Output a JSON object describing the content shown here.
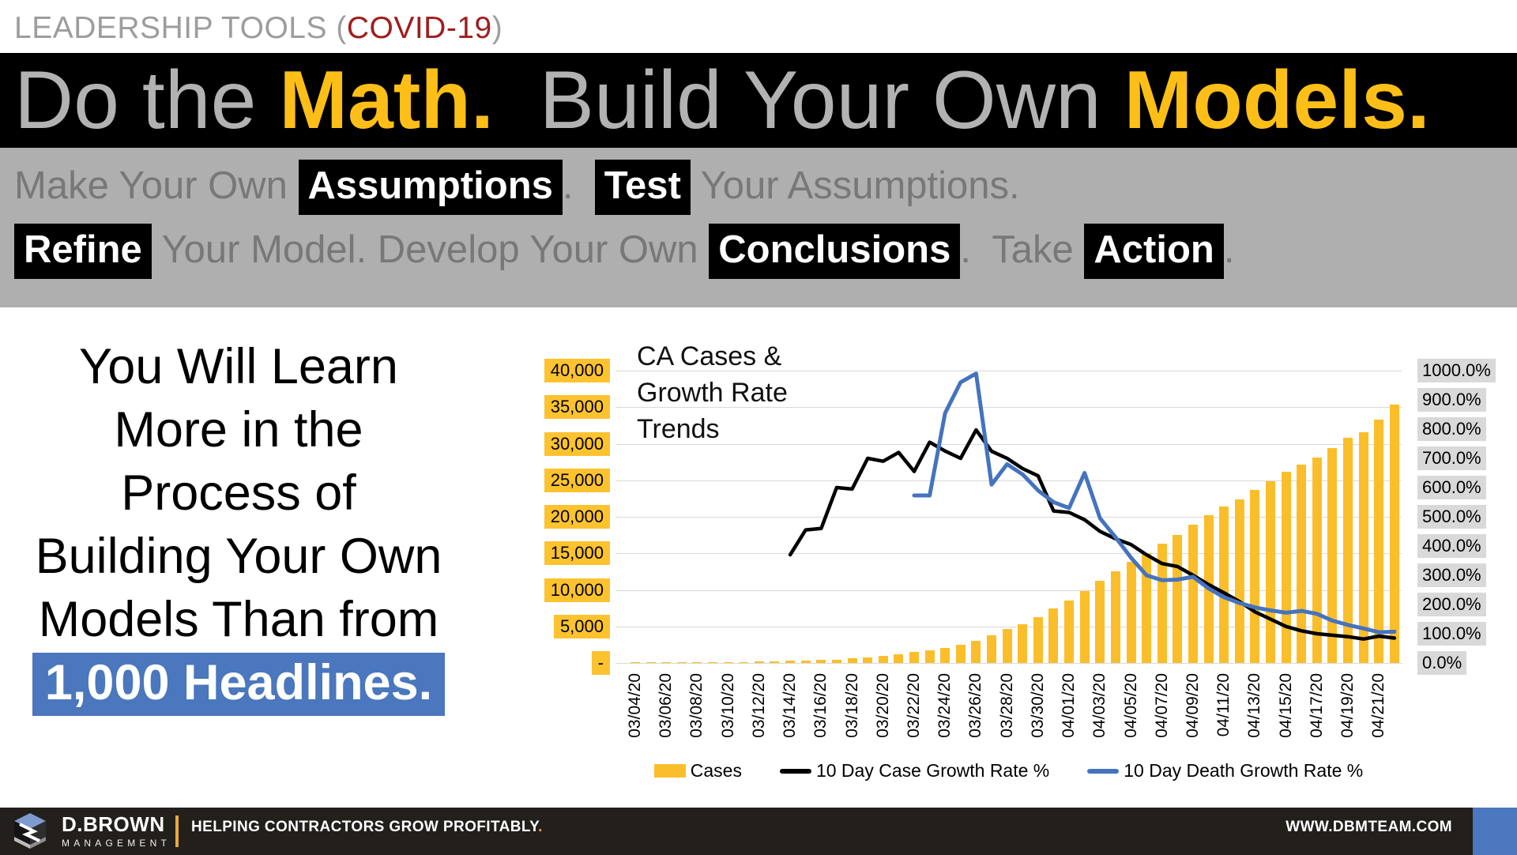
{
  "header": {
    "prefix": "LEADERSHIP TOOLS (",
    "highlight": "COVID-19",
    "suffix": ")"
  },
  "title": {
    "segments": [
      {
        "t": "Do the ",
        "c": "gray"
      },
      {
        "t": "Math.",
        "c": "gold"
      },
      {
        "t": "  Build Your Own ",
        "c": "gray"
      },
      {
        "t": "Models.",
        "c": "gold"
      }
    ]
  },
  "banner": {
    "line1": [
      {
        "t": "Make Your Own ",
        "c": "gray"
      },
      {
        "t": "Assumptions",
        "c": "hl"
      },
      {
        "t": ".  ",
        "c": "gray"
      },
      {
        "t": "Test",
        "c": "hl"
      },
      {
        "t": " Your Assumptions.",
        "c": "gray"
      }
    ],
    "line2": [
      {
        "t": "Refine",
        "c": "hl"
      },
      {
        "t": " Your Model. Develop Your Own ",
        "c": "gray"
      },
      {
        "t": "Conclusions",
        "c": "hl"
      },
      {
        "t": ".  Take ",
        "c": "gray"
      },
      {
        "t": "Action",
        "c": "hl"
      },
      {
        "t": ".",
        "c": "gray"
      }
    ]
  },
  "left_text": {
    "lines": [
      "You Will Learn",
      "More in the",
      "Process of",
      "Building Your Own",
      "Models Than from"
    ],
    "highlight": "1,000 Headlines."
  },
  "chart_data": {
    "type": "bar",
    "title": "CA Cases & Growth Rate Trends",
    "left_axis": {
      "min": 0,
      "max": 40000,
      "step": 5000,
      "tick_labels": [
        "40,000",
        "35,000",
        "30,000",
        "25,000",
        "20,000",
        "15,000",
        "10,000",
        "5,000",
        "-"
      ],
      "highlight_color": "#fcc32f"
    },
    "right_axis": {
      "min": 0,
      "max": 1000,
      "step": 100,
      "tick_labels": [
        "1000.0%",
        "900.0%",
        "800.0%",
        "700.0%",
        "600.0%",
        "500.0%",
        "400.0%",
        "300.0%",
        "200.0%",
        "100.0%",
        "0.0%"
      ],
      "highlight_color": "#d9d9d9"
    },
    "grid": true,
    "legend_position": "bottom",
    "x_tick_every": 2,
    "categories": [
      "03/04/20",
      "03/05/20",
      "03/06/20",
      "03/07/20",
      "03/08/20",
      "03/09/20",
      "03/10/20",
      "03/11/20",
      "03/12/20",
      "03/13/20",
      "03/14/20",
      "03/15/20",
      "03/16/20",
      "03/17/20",
      "03/18/20",
      "03/19/20",
      "03/20/20",
      "03/21/20",
      "03/22/20",
      "03/23/20",
      "03/24/20",
      "03/25/20",
      "03/26/20",
      "03/27/20",
      "03/28/20",
      "03/29/20",
      "03/30/20",
      "03/31/20",
      "04/01/20",
      "04/02/20",
      "04/03/20",
      "04/04/20",
      "04/05/20",
      "04/06/20",
      "04/07/20",
      "04/08/20",
      "04/09/20",
      "04/10/20",
      "04/11/20",
      "04/12/20",
      "04/13/20",
      "04/14/20",
      "04/15/20",
      "04/16/20",
      "04/17/20",
      "04/18/20",
      "04/19/20",
      "04/20/20",
      "04/21/20",
      "04/22/20"
    ],
    "series": [
      {
        "name": "Cases",
        "type": "bar",
        "axis": "left",
        "color": "#fbbe2b",
        "start_index": 0,
        "values": [
          53,
          60,
          69,
          81,
          88,
          107,
          133,
          157,
          202,
          247,
          288,
          335,
          392,
          472,
          611,
          759,
          1006,
          1224,
          1468,
          1733,
          2108,
          2538,
          3006,
          3801,
          4603,
          5307,
          6266,
          7421,
          8582,
          9816,
          11190,
          12569,
          13796,
          14988,
          16361,
          17540,
          18897,
          20191,
          21366,
          22421,
          23650,
          24890,
          26182,
          27107,
          28142,
          29398,
          30829,
          31544,
          33261,
          35396
        ]
      },
      {
        "name": "10 Day Case Growth Rate %",
        "type": "line",
        "axis": "right",
        "color": "#000000",
        "start_index": 10,
        "values": [
          370,
          455,
          460,
          600,
          595,
          700,
          690,
          720,
          655,
          755,
          725,
          700,
          797,
          724,
          700,
          665,
          640,
          520,
          515,
          490,
          450,
          425,
          405,
          370,
          340,
          330,
          300,
          268,
          240,
          210,
          175,
          150,
          125,
          110,
          100,
          95,
          90,
          82,
          92,
          85
        ]
      },
      {
        "name": "10 Day Death Growth Rate %",
        "type": "line",
        "axis": "right",
        "color": "#4573be",
        "start_index": 18,
        "values": [
          573,
          573,
          855,
          960,
          990,
          610,
          680,
          645,
          590,
          550,
          530,
          650,
          495,
          430,
          360,
          300,
          283,
          285,
          295,
          255,
          225,
          205,
          190,
          180,
          172,
          178,
          168,
          145,
          130,
          118,
          105,
          107
        ]
      }
    ]
  },
  "footer": {
    "brand_name": "D.BROWN",
    "brand_sub": "MANAGEMENT",
    "tagline": "HELPING CONTRACTORS GROW PROFITABLY",
    "tagline_period": ".",
    "url": "WWW.DBMTEAM.COM"
  },
  "colors": {
    "gold_accent": "#fdbf17",
    "bar_yellow": "#fbbe2b",
    "blue_line": "#4573be",
    "blue_highlight": "#4a77bd",
    "covid_red": "#a11d1d",
    "banner_gray": "#afafaf",
    "footer_bg": "#231f1b",
    "grid_gray": "#d9d9d9"
  }
}
